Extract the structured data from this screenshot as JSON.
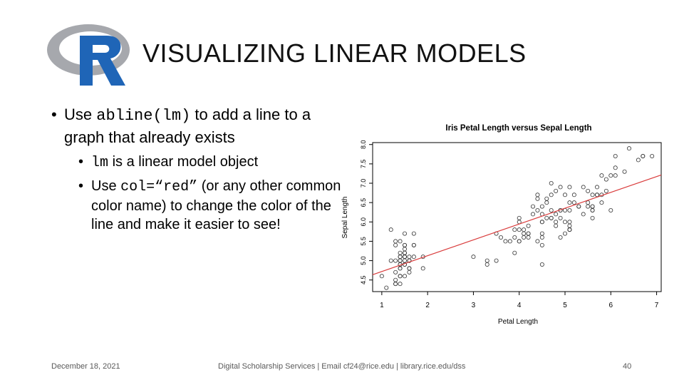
{
  "slide": {
    "title": "VISUALIZING LINEAR MODELS",
    "bullet1": {
      "pre": "Use ",
      "code": "abline(lm)",
      "post": " to add a line to a graph that already exists"
    },
    "bullet2": {
      "code": "lm",
      "post": " is a linear model object"
    },
    "bullet3": {
      "pre": "Use ",
      "code": "col=“red”",
      "post": " (or any other common color name) to change the color of the line and make it easier to see!"
    }
  },
  "footer": {
    "date": "December 18, 2021",
    "org": "Digital Scholarship Services | Email cf24@rice.edu | library.rice.edu/dss",
    "page": "40"
  },
  "colors": {
    "logo_blue": "#1f65b7",
    "logo_ring": "#a6a8ad",
    "abline": "#d93b3b"
  },
  "chart_data": {
    "type": "scatter",
    "title": "Iris Petal Length versus Sepal Length",
    "xlabel": "Petal Length",
    "ylabel": "Sepal Length",
    "xlim": [
      0.8,
      7.1
    ],
    "ylim": [
      4.2,
      8.05
    ],
    "xticks": [
      "1",
      "2",
      "3",
      "4",
      "5",
      "6",
      "7"
    ],
    "yticks": [
      "4.5",
      "5.0",
      "5.5",
      "6.0",
      "6.5",
      "7.0",
      "7.5",
      "8.0"
    ],
    "grid": false,
    "abline": {
      "intercept": 4.31,
      "slope": 0.409,
      "color": "red"
    },
    "points": [
      [
        1.4,
        5.1
      ],
      [
        1.4,
        4.9
      ],
      [
        1.3,
        4.7
      ],
      [
        1.5,
        4.6
      ],
      [
        1.4,
        5.0
      ],
      [
        1.7,
        5.4
      ],
      [
        1.4,
        4.6
      ],
      [
        1.5,
        5.0
      ],
      [
        1.4,
        4.4
      ],
      [
        1.5,
        4.9
      ],
      [
        1.5,
        5.4
      ],
      [
        1.6,
        4.8
      ],
      [
        1.4,
        4.8
      ],
      [
        1.1,
        4.3
      ],
      [
        1.2,
        5.8
      ],
      [
        1.5,
        5.7
      ],
      [
        1.3,
        5.4
      ],
      [
        1.4,
        5.1
      ],
      [
        1.7,
        5.7
      ],
      [
        1.5,
        5.1
      ],
      [
        1.7,
        5.4
      ],
      [
        1.5,
        5.1
      ],
      [
        1.0,
        4.6
      ],
      [
        1.7,
        5.1
      ],
      [
        1.9,
        4.8
      ],
      [
        1.6,
        5.0
      ],
      [
        1.6,
        5.0
      ],
      [
        1.5,
        5.2
      ],
      [
        1.4,
        5.2
      ],
      [
        1.6,
        4.7
      ],
      [
        1.6,
        4.8
      ],
      [
        1.5,
        5.4
      ],
      [
        1.5,
        5.2
      ],
      [
        1.4,
        5.5
      ],
      [
        1.5,
        4.9
      ],
      [
        1.2,
        5.0
      ],
      [
        1.3,
        5.5
      ],
      [
        1.4,
        4.9
      ],
      [
        1.3,
        4.4
      ],
      [
        1.5,
        5.1
      ],
      [
        1.3,
        5.0
      ],
      [
        1.3,
        4.5
      ],
      [
        1.3,
        4.4
      ],
      [
        1.6,
        5.0
      ],
      [
        1.9,
        5.1
      ],
      [
        1.4,
        4.8
      ],
      [
        1.6,
        5.1
      ],
      [
        1.4,
        4.6
      ],
      [
        1.5,
        5.3
      ],
      [
        1.4,
        5.0
      ],
      [
        4.7,
        7.0
      ],
      [
        4.5,
        6.4
      ],
      [
        4.9,
        6.9
      ],
      [
        4.0,
        5.5
      ],
      [
        4.6,
        6.5
      ],
      [
        4.5,
        5.7
      ],
      [
        4.7,
        6.3
      ],
      [
        3.3,
        4.9
      ],
      [
        4.6,
        6.6
      ],
      [
        3.9,
        5.2
      ],
      [
        3.5,
        5.0
      ],
      [
        4.2,
        5.9
      ],
      [
        4.0,
        6.0
      ],
      [
        4.7,
        6.1
      ],
      [
        3.6,
        5.6
      ],
      [
        4.4,
        6.7
      ],
      [
        4.5,
        5.6
      ],
      [
        4.1,
        5.8
      ],
      [
        4.5,
        6.2
      ],
      [
        3.9,
        5.6
      ],
      [
        4.8,
        5.9
      ],
      [
        4.0,
        6.1
      ],
      [
        4.9,
        6.3
      ],
      [
        4.7,
        6.1
      ],
      [
        4.3,
        6.4
      ],
      [
        4.4,
        6.6
      ],
      [
        4.8,
        6.8
      ],
      [
        5.0,
        6.7
      ],
      [
        4.5,
        6.0
      ],
      [
        3.5,
        5.7
      ],
      [
        3.8,
        5.5
      ],
      [
        3.7,
        5.5
      ],
      [
        3.9,
        5.8
      ],
      [
        5.1,
        6.0
      ],
      [
        4.5,
        5.4
      ],
      [
        4.5,
        6.0
      ],
      [
        4.7,
        6.7
      ],
      [
        4.4,
        6.3
      ],
      [
        4.1,
        5.6
      ],
      [
        4.0,
        5.5
      ],
      [
        4.4,
        5.5
      ],
      [
        4.6,
        6.1
      ],
      [
        4.0,
        5.8
      ],
      [
        3.3,
        5.0
      ],
      [
        4.2,
        5.6
      ],
      [
        4.2,
        5.7
      ],
      [
        4.2,
        5.7
      ],
      [
        4.3,
        6.2
      ],
      [
        3.0,
        5.1
      ],
      [
        4.1,
        5.7
      ],
      [
        6.0,
        6.3
      ],
      [
        5.1,
        5.8
      ],
      [
        5.9,
        7.1
      ],
      [
        5.6,
        6.3
      ],
      [
        5.8,
        6.5
      ],
      [
        6.6,
        7.6
      ],
      [
        4.5,
        4.9
      ],
      [
        6.3,
        7.3
      ],
      [
        5.8,
        6.7
      ],
      [
        6.1,
        7.2
      ],
      [
        5.1,
        6.5
      ],
      [
        5.3,
        6.4
      ],
      [
        5.5,
        6.8
      ],
      [
        5.0,
        5.7
      ],
      [
        5.1,
        5.8
      ],
      [
        5.3,
        6.4
      ],
      [
        5.5,
        6.5
      ],
      [
        6.7,
        7.7
      ],
      [
        6.9,
        7.7
      ],
      [
        5.0,
        6.0
      ],
      [
        5.7,
        6.9
      ],
      [
        4.9,
        5.6
      ],
      [
        6.7,
        7.7
      ],
      [
        4.9,
        6.3
      ],
      [
        5.7,
        6.7
      ],
      [
        6.0,
        7.2
      ],
      [
        4.8,
        6.2
      ],
      [
        4.9,
        6.1
      ],
      [
        5.6,
        6.4
      ],
      [
        5.8,
        7.2
      ],
      [
        6.1,
        7.4
      ],
      [
        6.4,
        7.9
      ],
      [
        5.6,
        6.4
      ],
      [
        5.1,
        6.3
      ],
      [
        5.6,
        6.1
      ],
      [
        6.1,
        7.7
      ],
      [
        5.6,
        6.3
      ],
      [
        5.5,
        6.4
      ],
      [
        4.8,
        6.0
      ],
      [
        5.4,
        6.9
      ],
      [
        5.6,
        6.7
      ],
      [
        5.1,
        6.9
      ],
      [
        5.1,
        5.8
      ],
      [
        5.9,
        6.8
      ],
      [
        5.7,
        6.7
      ],
      [
        5.2,
        6.7
      ],
      [
        5.0,
        6.3
      ],
      [
        5.2,
        6.5
      ],
      [
        5.4,
        6.2
      ],
      [
        5.1,
        5.9
      ]
    ]
  }
}
